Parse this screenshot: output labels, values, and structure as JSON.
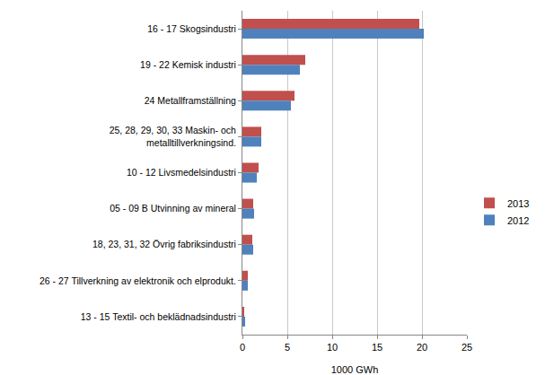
{
  "chart_data": {
    "type": "bar",
    "orientation": "horizontal",
    "categories": [
      "16 - 17 Skogsindustri",
      "19 - 22 Kemisk industri",
      "24 Metallframställning",
      "25, 28, 29, 30, 33 Maskin- och metalltillverkningsind.",
      "10 - 12 Livsmedelsindustri",
      "05 - 09 B Utvinning av mineral",
      "18, 23, 31, 32 Övrig fabriksindustri",
      "26 - 27 Tillverkning av elektronik och elprodukt.",
      "13 - 15 Textil- och beklädnadsindustri"
    ],
    "series": [
      {
        "name": "2013",
        "color": "#c0504d",
        "values": [
          19.7,
          7.0,
          5.8,
          2.1,
          1.8,
          1.2,
          1.1,
          0.6,
          0.2
        ]
      },
      {
        "name": "2012",
        "color": "#4f81bd",
        "values": [
          20.2,
          6.4,
          5.4,
          2.1,
          1.6,
          1.3,
          1.2,
          0.6,
          0.3
        ]
      }
    ],
    "x_label": "1000 GWh",
    "xlim": [
      0,
      25
    ],
    "xticks": [
      0,
      5,
      10,
      15,
      20,
      25
    ],
    "grid": true,
    "legend": "right"
  }
}
